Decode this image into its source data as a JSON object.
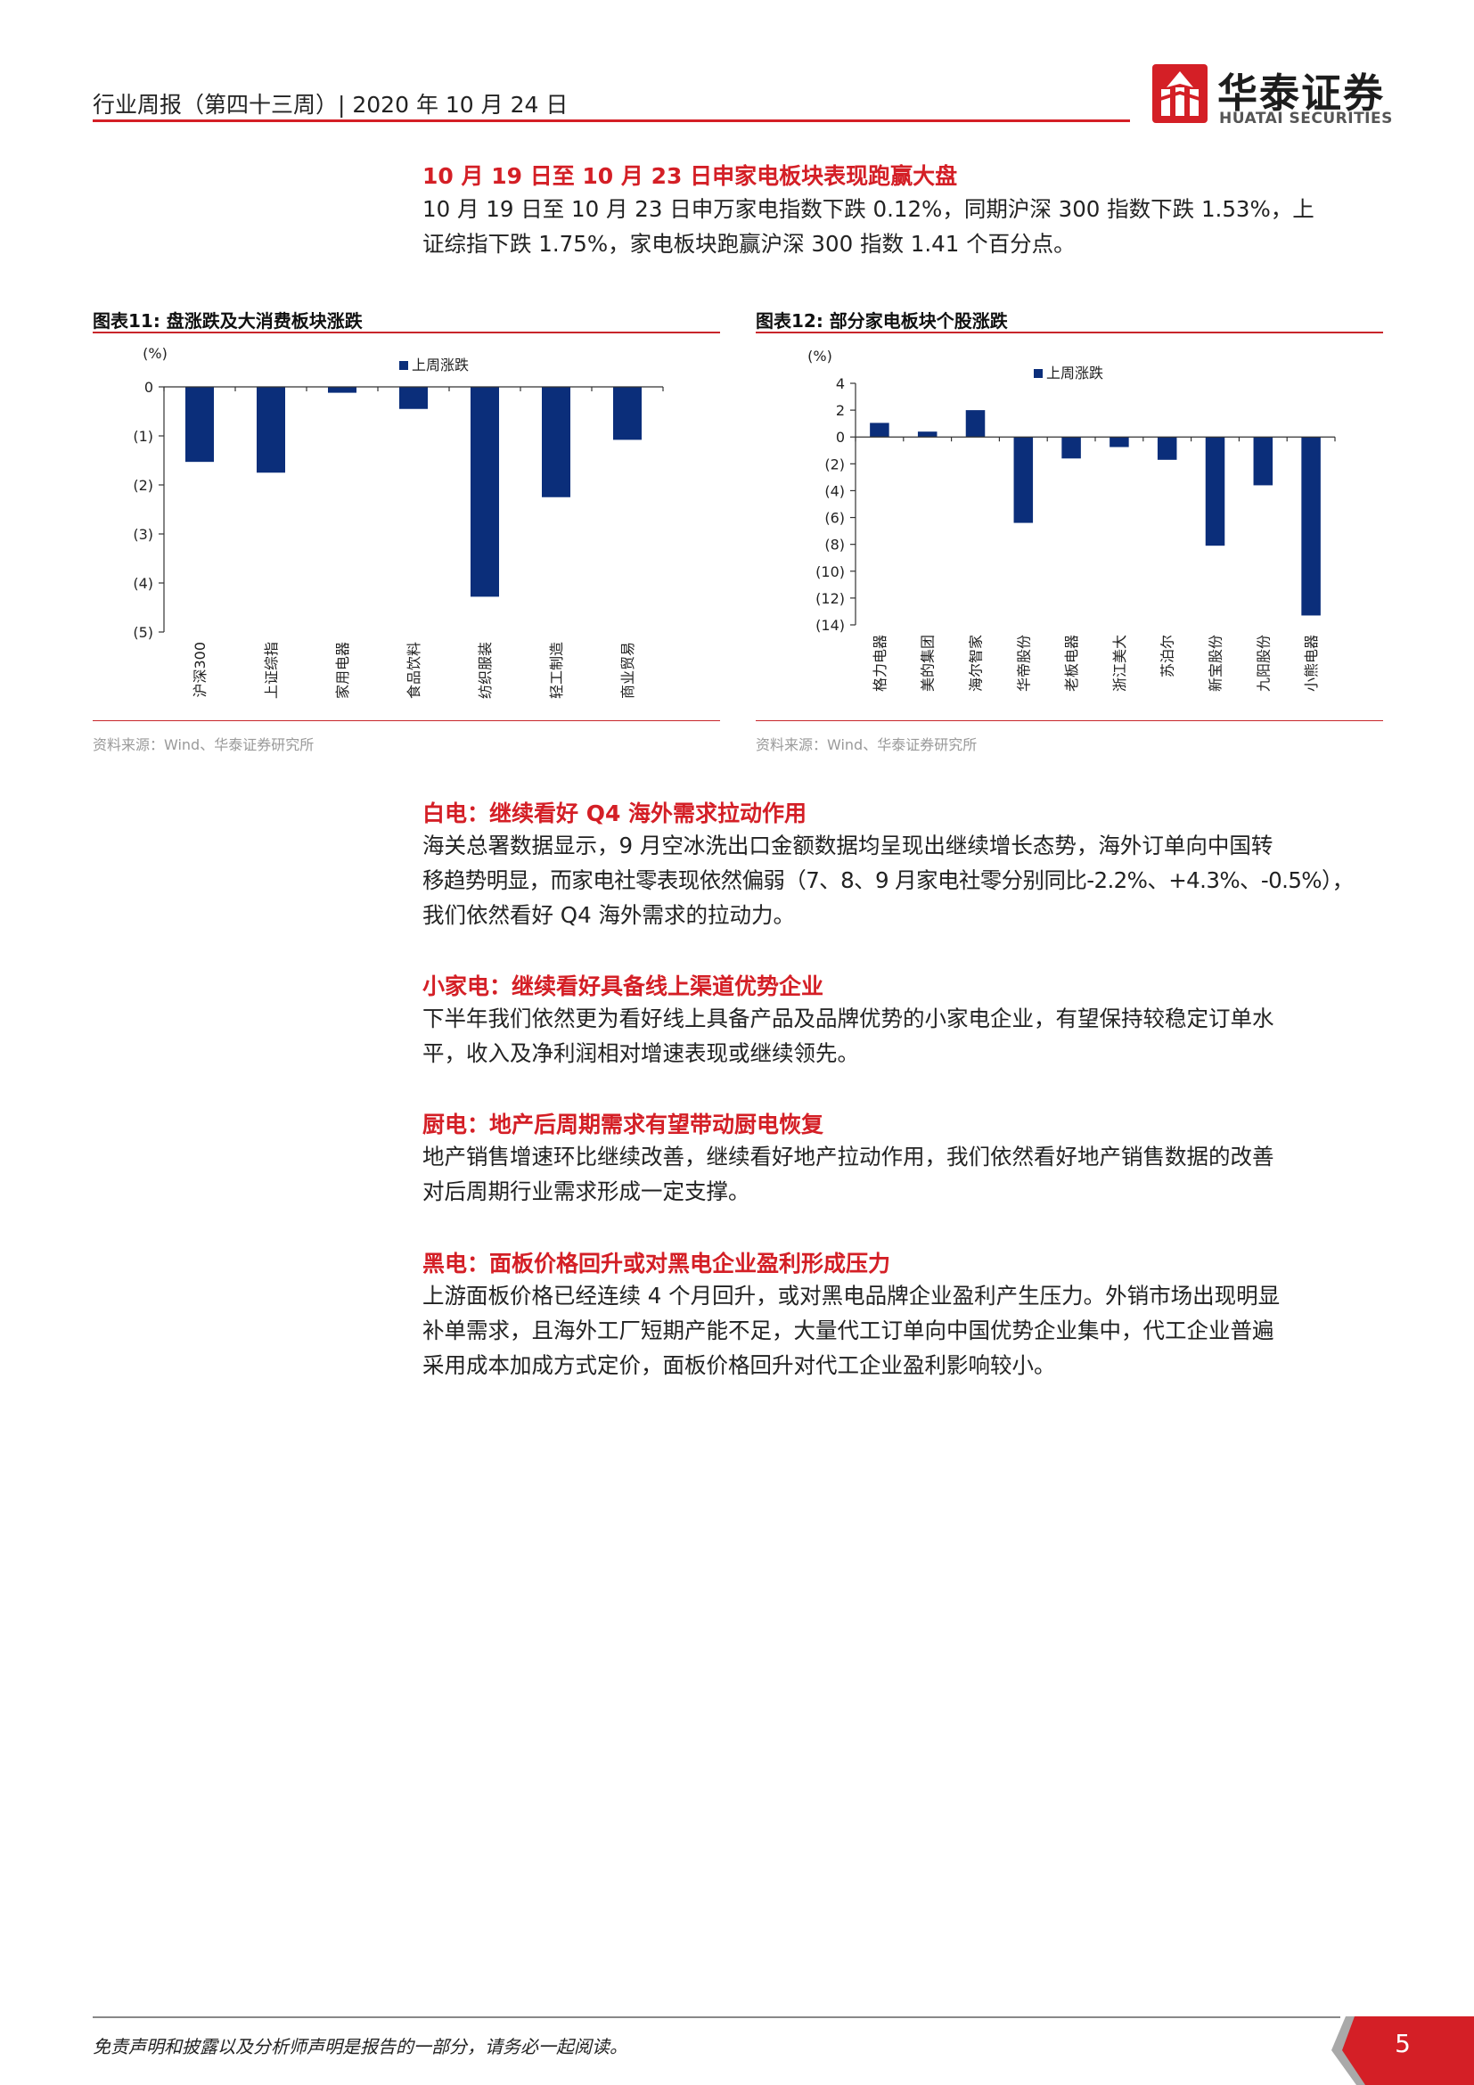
{
  "header": {
    "title": "行业周报（第四十三周）| 2020 年 10 月 24 日",
    "logo_cn": "华泰证券",
    "logo_en": "HUATAI SECURITIES",
    "brand_color": "#d41f26"
  },
  "section_intro": {
    "heading": "10 月 19 日至 10 月 23 日申家电板块表现跑赢大盘",
    "lines": [
      "10 月 19 日至 10 月 23 日申万家电指数下跌 0.12%，同期沪深 300 指数下跌 1.53%，上",
      "证综指下跌 1.75%，家电板块跑赢沪深 300 指数 1.41 个百分点。"
    ]
  },
  "chart_data": [
    {
      "type": "bar",
      "title": "图表11:   盘涨跌及大消费板块涨跌",
      "ylabel": "(%)",
      "legend": "上周涨跌",
      "legend_position": "top-center",
      "categories": [
        "沪深300",
        "上证综指",
        "家用电器",
        "食品饮料",
        "纺织服装",
        "轻工制造",
        "商业贸易"
      ],
      "series": [
        {
          "name": "上周涨跌",
          "values": [
            -1.53,
            -1.75,
            -0.12,
            -0.45,
            -4.28,
            -2.25,
            -1.08
          ]
        }
      ],
      "ylim": [
        -5,
        0
      ],
      "yticks": [
        0,
        -1,
        -2,
        -3,
        -4,
        -5
      ],
      "ytick_labels": [
        "0",
        "(1)",
        "(2)",
        "(3)",
        "(4)",
        "(5)"
      ],
      "bar_color": "#0b2e7a",
      "grid": false,
      "source": "资料来源：Wind、华泰证券研究所"
    },
    {
      "type": "bar",
      "title": "图表12:   部分家电板块个股涨跌",
      "ylabel": "(%)",
      "legend": "上周涨跌",
      "legend_position": "top-center",
      "categories": [
        "格力电器",
        "美的集团",
        "海尔智家",
        "华帝股份",
        "老板电器",
        "浙江美大",
        "苏泊尔",
        "新宝股份",
        "九阳股份",
        "小熊电器"
      ],
      "series": [
        {
          "name": "上周涨跌",
          "values": [
            1.05,
            0.4,
            2.0,
            -6.4,
            -1.6,
            -0.75,
            -1.7,
            -8.1,
            -3.6,
            -13.3
          ]
        }
      ],
      "ylim": [
        -14,
        4
      ],
      "yticks": [
        4,
        2,
        0,
        -2,
        -4,
        -6,
        -8,
        -10,
        -12,
        -14
      ],
      "ytick_labels": [
        "4",
        "2",
        "0",
        "(2)",
        "(4)",
        "(6)",
        "(8)",
        "(10)",
        "(12)",
        "(14)"
      ],
      "bar_color": "#0b2e7a",
      "grid": false,
      "source": "资料来源：Wind、华泰证券研究所"
    }
  ],
  "sections": [
    {
      "heading": "白电：继续看好 Q4 海外需求拉动作用",
      "lines": [
        "海关总署数据显示，9 月空冰洗出口金额数据均呈现出继续增长态势，海外订单向中国转",
        "移趋势明显，而家电社零表现依然偏弱（7、8、9 月家电社零分别同比-2.2%、+4.3%、-0.5%），",
        "我们依然看好 Q4 海外需求的拉动力。"
      ]
    },
    {
      "heading": "小家电：继续看好具备线上渠道优势企业",
      "lines": [
        "下半年我们依然更为看好线上具备产品及品牌优势的小家电企业，有望保持较稳定订单水",
        "平，收入及净利润相对增速表现或继续领先。"
      ]
    },
    {
      "heading": "厨电：地产后周期需求有望带动厨电恢复",
      "lines": [
        "地产销售增速环比继续改善，继续看好地产拉动作用，我们依然看好地产销售数据的改善",
        "对后周期行业需求形成一定支撑。"
      ]
    },
    {
      "heading": "黑电：面板价格回升或对黑电企业盈利形成压力",
      "lines": [
        "上游面板价格已经连续 4 个月回升，或对黑电品牌企业盈利产生压力。外销市场出现明显",
        "补单需求，且海外工厂短期产能不足，大量代工订单向中国优势企业集中，代工企业普遍",
        "采用成本加成方式定价，面板价格回升对代工企业盈利影响较小。"
      ]
    }
  ],
  "footer": {
    "disclaimer": "免责声明和披露以及分析师声明是报告的一部分，请务必一起阅读。",
    "page_number": "5"
  }
}
